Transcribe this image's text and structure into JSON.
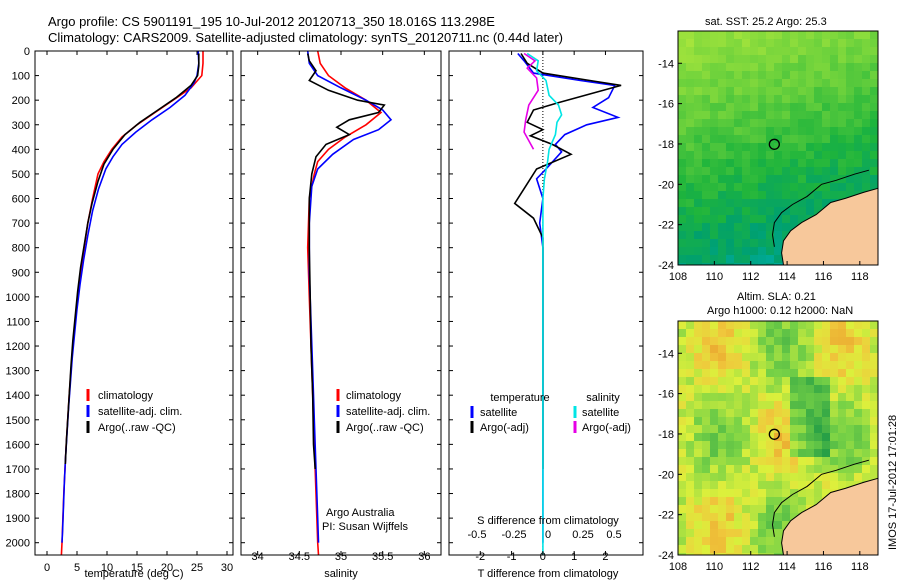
{
  "title": {
    "line1": "Argo profile: CS 5901191_195 10-Jul-2012 20120713_350 18.016S 113.298E",
    "line2": "Climatology: CARS2009. Satellite-adjusted climatology: synTS_20120711.nc (0.44d later)"
  },
  "colors": {
    "climatology": "#ff0000",
    "satellite": "#0000ff",
    "argo": "#000000",
    "salinity_sat": "#00e5e5",
    "salinity_argo": "#e600e6",
    "land": "#f7c89b"
  },
  "depth_ticks": [
    "0",
    "100",
    "200",
    "300",
    "400",
    "500",
    "600",
    "700",
    "800",
    "900",
    "1000",
    "1100",
    "1200",
    "1300",
    "1400",
    "1500",
    "1600",
    "1700",
    "1800",
    "1900",
    "2000"
  ],
  "chart_data": [
    {
      "type": "line",
      "id": "temperature",
      "xlabel": "temperature (deg C)",
      "xlim": [
        -2,
        31
      ],
      "ylim": [
        0,
        2050
      ],
      "x_ticks": [
        "0",
        "5",
        "10",
        "15",
        "20",
        "25",
        "30"
      ],
      "legend": [
        "climatology",
        "satellite-adj. clim.",
        "Argo(..raw -QC)"
      ],
      "series": [
        {
          "name": "climatology",
          "color": "#ff0000",
          "points": [
            [
              26,
              0
            ],
            [
              26,
              50
            ],
            [
              25.8,
              100
            ],
            [
              24,
              150
            ],
            [
              21,
              200
            ],
            [
              18,
              250
            ],
            [
              15,
              300
            ],
            [
              12.5,
              350
            ],
            [
              10.8,
              400
            ],
            [
              9.5,
              450
            ],
            [
              8.5,
              500
            ],
            [
              7.6,
              600
            ],
            [
              6.8,
              700
            ],
            [
              6.2,
              800
            ],
            [
              5.6,
              900
            ],
            [
              5.1,
              1000
            ],
            [
              4.7,
              1100
            ],
            [
              4.3,
              1200
            ],
            [
              4,
              1300
            ],
            [
              3.7,
              1400
            ],
            [
              3.45,
              1500
            ],
            [
              3.2,
              1600
            ],
            [
              3,
              1700
            ],
            [
              2.8,
              1800
            ],
            [
              2.65,
              1900
            ],
            [
              2.5,
              2000
            ],
            [
              2.4,
              2050
            ]
          ]
        },
        {
          "name": "satellite-adj. clim.",
          "color": "#0000ff",
          "points": [
            [
              25.2,
              0
            ],
            [
              25.3,
              50
            ],
            [
              25,
              100
            ],
            [
              24.5,
              130
            ],
            [
              23,
              180
            ],
            [
              20.5,
              230
            ],
            [
              17.5,
              280
            ],
            [
              14.8,
              330
            ],
            [
              12.5,
              380
            ],
            [
              11,
              430
            ],
            [
              9.8,
              480
            ],
            [
              8.6,
              560
            ],
            [
              7.6,
              650
            ],
            [
              6.8,
              750
            ],
            [
              6.1,
              850
            ],
            [
              5.5,
              950
            ],
            [
              5,
              1050
            ],
            [
              4.6,
              1150
            ],
            [
              4.2,
              1250
            ],
            [
              3.9,
              1350
            ],
            [
              3.6,
              1450
            ],
            [
              3.35,
              1550
            ],
            [
              3.1,
              1650
            ],
            [
              2.9,
              1750
            ],
            [
              2.75,
              1850
            ],
            [
              2.6,
              1950
            ],
            [
              2.5,
              2000
            ]
          ]
        },
        {
          "name": "Argo(..raw -QC)",
          "color": "#000000",
          "points": [
            [
              25.3,
              10
            ],
            [
              25.3,
              60
            ],
            [
              25.1,
              100
            ],
            [
              24,
              140
            ],
            [
              21.5,
              190
            ],
            [
              18.5,
              240
            ],
            [
              15.5,
              290
            ],
            [
              13,
              340
            ],
            [
              11,
              400
            ],
            [
              9.5,
              460
            ],
            [
              8.5,
              530
            ],
            [
              7.5,
              620
            ],
            [
              6.8,
              700
            ],
            [
              6.2,
              790
            ],
            [
              5.6,
              880
            ],
            [
              5.1,
              980
            ],
            [
              4.7,
              1080
            ],
            [
              4.3,
              1180
            ],
            [
              4,
              1280
            ],
            [
              3.75,
              1380
            ],
            [
              3.5,
              1480
            ],
            [
              3.25,
              1580
            ],
            [
              3.05,
              1680
            ]
          ]
        }
      ]
    },
    {
      "type": "line",
      "id": "salinity",
      "xlabel": "salinity",
      "xlim": [
        33.8,
        36.2
      ],
      "ylim": [
        0,
        2050
      ],
      "x_ticks": [
        "34",
        "34.5",
        "35",
        "35.5",
        "36"
      ],
      "legend": [
        "climatology",
        "satellite-adj. clim.",
        "Argo(..raw -QC)"
      ],
      "annotation": [
        "Argo Australia",
        "PI: Susan Wijffels"
      ],
      "series": [
        {
          "name": "climatology",
          "color": "#ff0000",
          "points": [
            [
              34.72,
              0
            ],
            [
              34.75,
              50
            ],
            [
              34.85,
              100
            ],
            [
              35.05,
              150
            ],
            [
              35.3,
              200
            ],
            [
              35.48,
              250
            ],
            [
              35.3,
              300
            ],
            [
              35.05,
              350
            ],
            [
              34.85,
              400
            ],
            [
              34.72,
              450
            ],
            [
              34.68,
              500
            ],
            [
              34.62,
              600
            ],
            [
              34.6,
              800
            ],
            [
              34.62,
              1000
            ],
            [
              34.64,
              1200
            ],
            [
              34.66,
              1400
            ],
            [
              34.68,
              1600
            ],
            [
              34.7,
              1800
            ],
            [
              34.72,
              2000
            ],
            [
              34.73,
              2050
            ]
          ]
        },
        {
          "name": "satellite-adj. clim.",
          "color": "#0000ff",
          "points": [
            [
              34.6,
              0
            ],
            [
              34.62,
              50
            ],
            [
              34.72,
              100
            ],
            [
              35,
              150
            ],
            [
              35.3,
              200
            ],
            [
              35.5,
              240
            ],
            [
              35.6,
              280
            ],
            [
              35.45,
              320
            ],
            [
              35.15,
              360
            ],
            [
              34.9,
              420
            ],
            [
              34.72,
              480
            ],
            [
              34.65,
              550
            ],
            [
              34.62,
              700
            ],
            [
              34.62,
              900
            ],
            [
              34.64,
              1100
            ],
            [
              34.66,
              1300
            ],
            [
              34.68,
              1500
            ],
            [
              34.7,
              1700
            ],
            [
              34.72,
              1900
            ],
            [
              34.73,
              2000
            ]
          ]
        },
        {
          "name": "Argo(..raw -QC)",
          "color": "#000000",
          "points": [
            [
              34.6,
              10
            ],
            [
              34.62,
              40
            ],
            [
              34.7,
              80
            ],
            [
              34.62,
              120
            ],
            [
              34.85,
              160
            ],
            [
              35.2,
              200
            ],
            [
              35.52,
              220
            ],
            [
              35.45,
              250
            ],
            [
              35.1,
              280
            ],
            [
              34.95,
              310
            ],
            [
              35.1,
              340
            ],
            [
              34.82,
              380
            ],
            [
              34.7,
              430
            ],
            [
              34.65,
              500
            ],
            [
              34.62,
              600
            ],
            [
              34.62,
              800
            ],
            [
              34.63,
              1000
            ],
            [
              34.64,
              1200
            ],
            [
              34.66,
              1400
            ],
            [
              34.67,
              1600
            ],
            [
              34.69,
              1700
            ]
          ]
        }
      ]
    },
    {
      "type": "line",
      "id": "difference",
      "xlabel_S": "S difference from climatology",
      "xlabel_T": "T difference from climatology",
      "s_ticks": [
        "-0.5",
        "-0.25",
        "0",
        "0.25",
        "0.5"
      ],
      "t_ticks": [
        "-2",
        "-1",
        "0",
        "1",
        "2"
      ],
      "xlim": [
        -3,
        3.2
      ],
      "ylim": [
        0,
        2050
      ],
      "legend_temperature": {
        "header": "temperature",
        "items": [
          "satellite",
          "Argo(-adj)"
        ]
      },
      "legend_salinity": {
        "header": "salinity",
        "items": [
          "satellite",
          "Argo(-adj)"
        ]
      },
      "series": [
        {
          "name": "temperature satellite",
          "color": "#0000ff",
          "points": [
            [
              -0.8,
              10
            ],
            [
              -0.6,
              40
            ],
            [
              -0.3,
              90
            ],
            [
              1.2,
              120
            ],
            [
              2.3,
              140
            ],
            [
              2.1,
              190
            ],
            [
              1.6,
              230
            ],
            [
              2.4,
              270
            ],
            [
              1.4,
              300
            ],
            [
              0.7,
              340
            ],
            [
              0.4,
              380
            ],
            [
              0.6,
              410
            ],
            [
              0.1,
              480
            ],
            [
              -0.2,
              520
            ],
            [
              0,
              600
            ],
            [
              -0.1,
              700
            ],
            [
              0,
              800
            ],
            [
              0,
              1000
            ],
            [
              0,
              1200
            ],
            [
              0,
              1400
            ],
            [
              0,
              1600
            ],
            [
              0,
              1800
            ],
            [
              0,
              2000
            ]
          ]
        },
        {
          "name": "temperature Argo(-adj)",
          "color": "#000000",
          "points": [
            [
              -0.7,
              10
            ],
            [
              -0.5,
              50
            ],
            [
              0,
              90
            ],
            [
              1.5,
              120
            ],
            [
              2.5,
              140
            ],
            [
              1.5,
              175
            ],
            [
              0.5,
              210
            ],
            [
              -0.3,
              240
            ],
            [
              -0.5,
              290
            ],
            [
              0,
              320
            ],
            [
              -0.4,
              345
            ],
            [
              0.3,
              380
            ],
            [
              0.9,
              420
            ],
            [
              -0.2,
              480
            ],
            [
              -0.6,
              560
            ],
            [
              -0.9,
              620
            ],
            [
              -0.3,
              680
            ],
            [
              0,
              760
            ],
            [
              0,
              900
            ],
            [
              0,
              1100
            ],
            [
              0,
              1300
            ],
            [
              0,
              1500
            ],
            [
              0,
              1700
            ]
          ]
        },
        {
          "name": "salinity satellite",
          "color": "#00e5e5",
          "points": [
            [
              -0.5,
              10
            ],
            [
              -0.15,
              40
            ],
            [
              -0.2,
              80
            ],
            [
              0.1,
              120
            ],
            [
              0.2,
              180
            ],
            [
              0.5,
              220
            ],
            [
              0.6,
              260
            ],
            [
              0.45,
              290
            ],
            [
              0.4,
              340
            ],
            [
              0.2,
              400
            ],
            [
              0.15,
              450
            ],
            [
              0.05,
              520
            ],
            [
              0,
              600
            ],
            [
              0,
              700
            ],
            [
              0,
              900
            ],
            [
              0,
              1100
            ],
            [
              0,
              1300
            ],
            [
              0,
              1500
            ],
            [
              0,
              1700
            ],
            [
              0,
              1900
            ],
            [
              0,
              2050
            ]
          ]
        },
        {
          "name": "salinity Argo(-adj)",
          "color": "#e600e6",
          "points": [
            [
              -0.6,
              10
            ],
            [
              -0.25,
              40
            ],
            [
              -0.5,
              70
            ],
            [
              -0.2,
              110
            ],
            [
              -0.15,
              160
            ],
            [
              -0.45,
              220
            ],
            [
              -0.55,
              280
            ],
            [
              -0.6,
              330
            ],
            [
              -0.3,
              400
            ]
          ]
        }
      ]
    }
  ],
  "maps": [
    {
      "id": "sst",
      "title": "sat. SST: 25.2 Argo: 25.3",
      "x_ticks": [
        "108",
        "110",
        "112",
        "114",
        "116",
        "118"
      ],
      "y_ticks": [
        "-14",
        "-16",
        "-18",
        "-20",
        "-22",
        "-24"
      ],
      "xlim": [
        108,
        119
      ],
      "ylim": [
        -24,
        -12.4
      ],
      "marker": [
        113.298,
        -18.016
      ]
    },
    {
      "id": "sla",
      "title_line1": "Altim. SLA: 0.21",
      "title_line2": "Argo h1000: 0.12 h2000: NaN",
      "x_ticks": [
        "108",
        "110",
        "112",
        "114",
        "116",
        "118"
      ],
      "y_ticks": [
        "-14",
        "-16",
        "-18",
        "-20",
        "-22",
        "-24"
      ],
      "xlim": [
        108,
        119
      ],
      "ylim": [
        -24,
        -12.4
      ],
      "marker": [
        113.298,
        -18.016
      ]
    }
  ],
  "stamp": "IMOS 17-Jul-2012 17:01:28"
}
